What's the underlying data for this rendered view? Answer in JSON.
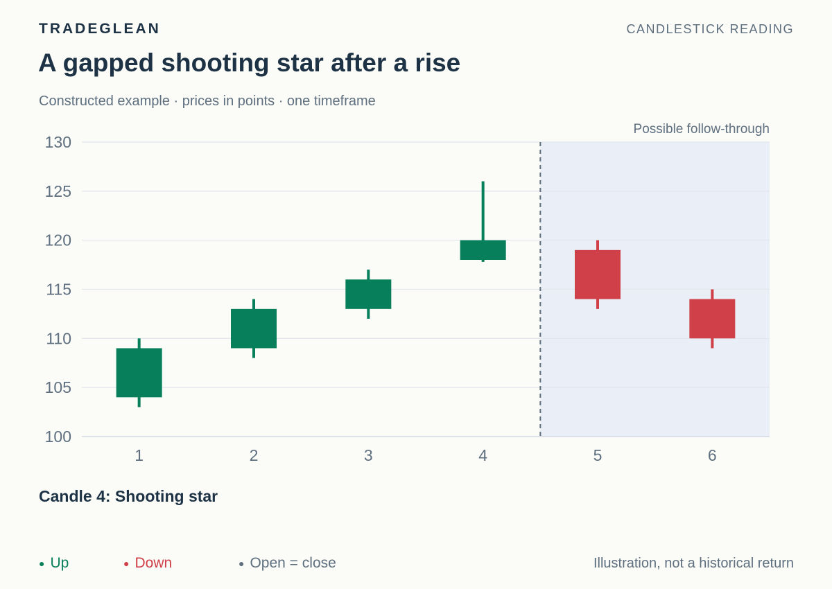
{
  "header": {
    "brand": "TRADEGLEAN",
    "kicker": "CANDLESTICK READING",
    "title": "A gapped shooting star after a rise",
    "subtitle": "Constructed example · prices in points · one timeframe"
  },
  "chart_data": {
    "type": "candlestick",
    "categories": [
      "1",
      "2",
      "3",
      "4",
      "5",
      "6"
    ],
    "candles": [
      {
        "x": "1",
        "open": 104,
        "high": 110,
        "low": 103,
        "close": 109
      },
      {
        "x": "2",
        "open": 109,
        "high": 114,
        "low": 108,
        "close": 113
      },
      {
        "x": "3",
        "open": 113,
        "high": 117,
        "low": 112,
        "close": 116
      },
      {
        "x": "4",
        "open": 118,
        "high": 126,
        "low": 117.8,
        "close": 120
      },
      {
        "x": "5",
        "open": 119,
        "high": 120,
        "low": 113,
        "close": 114
      },
      {
        "x": "6",
        "open": 114,
        "high": 115,
        "low": 109,
        "close": 110
      }
    ],
    "ylim": [
      100,
      130
    ],
    "yticks": [
      100,
      105,
      110,
      115,
      120,
      125,
      130
    ],
    "grid": true,
    "shaded_region": {
      "from_after": "4",
      "label": "Possible follow-through"
    },
    "annotation": "Candle 4: Shooting star",
    "colors": {
      "up": "#087f5b",
      "down": "#d04049",
      "flat": "#5e6f7f",
      "shade": "#eaeef6",
      "grid": "#e1e5ec"
    }
  },
  "legend": {
    "up": "Up",
    "down": "Down",
    "flat": "Open = close"
  },
  "footer": {
    "note": "Illustration, not a historical return"
  }
}
